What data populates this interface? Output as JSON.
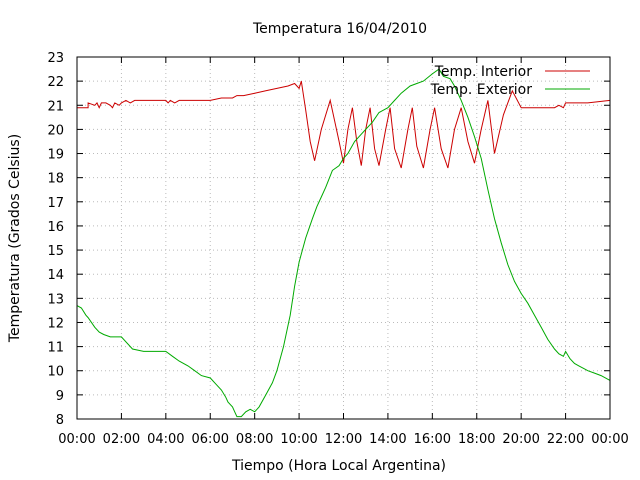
{
  "chart_data": {
    "type": "line",
    "title": "Temperatura 16/04/2010",
    "xlabel": "Tiempo (Hora Local Argentina)",
    "ylabel": "Temperatura (Grados Celsius)",
    "xlim": [
      0,
      24
    ],
    "ylim": [
      8,
      23
    ],
    "x_tick_labels": [
      "00:00",
      "02:00",
      "04:00",
      "06:00",
      "08:00",
      "10:00",
      "12:00",
      "14:00",
      "16:00",
      "18:00",
      "20:00",
      "22:00",
      "00:00"
    ],
    "y_tick_labels": [
      "8",
      "9",
      "10",
      "11",
      "12",
      "13",
      "14",
      "15",
      "16",
      "17",
      "18",
      "19",
      "20",
      "21",
      "22",
      "23"
    ],
    "grid": true,
    "legend_position": "top-right",
    "series": [
      {
        "name": "Temp. Interior",
        "color": "#cc0000",
        "x": [
          0,
          0.5,
          0.5,
          0.8,
          0.9,
          1.0,
          1.1,
          1.3,
          1.5,
          1.6,
          1.7,
          1.9,
          2.0,
          2.2,
          2.4,
          2.6,
          3.0,
          3.5,
          4.0,
          4.1,
          4.2,
          4.4,
          4.6,
          5.0,
          5.5,
          6.0,
          6.5,
          7.0,
          7.2,
          7.5,
          8.0,
          8.5,
          9.0,
          9.5,
          9.8,
          10.0,
          10.1,
          10.3,
          10.5,
          10.7,
          11.0,
          11.4,
          11.8,
          12.0,
          12.2,
          12.4,
          12.6,
          12.8,
          13.0,
          13.2,
          13.4,
          13.6,
          13.9,
          14.1,
          14.3,
          14.6,
          14.9,
          15.1,
          15.3,
          15.6,
          15.9,
          16.1,
          16.4,
          16.7,
          17.0,
          17.3,
          17.6,
          17.9,
          18.2,
          18.5,
          18.8,
          19.2,
          19.6,
          20.0,
          21.0,
          21.5,
          21.7,
          21.9,
          22.0,
          22.3,
          22.6,
          23.0,
          24.0
        ],
        "y": [
          20.9,
          20.9,
          21.1,
          21.0,
          21.1,
          20.9,
          21.1,
          21.1,
          21.0,
          20.9,
          21.1,
          21.0,
          21.1,
          21.2,
          21.1,
          21.2,
          21.2,
          21.2,
          21.2,
          21.1,
          21.2,
          21.1,
          21.2,
          21.2,
          21.2,
          21.2,
          21.3,
          21.3,
          21.4,
          21.4,
          21.5,
          21.6,
          21.7,
          21.8,
          21.9,
          21.7,
          22.0,
          20.8,
          19.5,
          18.7,
          20.0,
          21.2,
          19.5,
          18.6,
          20.0,
          20.9,
          19.5,
          18.5,
          20.0,
          20.9,
          19.2,
          18.5,
          20.0,
          20.9,
          19.2,
          18.4,
          20.0,
          20.9,
          19.3,
          18.4,
          20.0,
          20.9,
          19.2,
          18.4,
          20.0,
          20.9,
          19.5,
          18.6,
          20.0,
          21.2,
          19.0,
          20.6,
          21.6,
          20.9,
          20.9,
          20.9,
          21.0,
          20.9,
          21.1,
          21.1,
          21.1,
          21.1,
          21.2
        ]
      },
      {
        "name": "Temp. Exterior",
        "color": "#00aa00",
        "x": [
          0,
          0.2,
          0.4,
          0.5,
          0.8,
          1.0,
          1.2,
          1.5,
          2.0,
          2.5,
          3.0,
          3.5,
          4.0,
          4.3,
          4.6,
          5.0,
          5.3,
          5.6,
          6.0,
          6.2,
          6.5,
          6.7,
          6.8,
          7.0,
          7.1,
          7.2,
          7.4,
          7.6,
          7.8,
          8.0,
          8.2,
          8.5,
          8.8,
          9.0,
          9.3,
          9.6,
          9.8,
          10.0,
          10.3,
          10.6,
          10.8,
          11.0,
          11.2,
          11.5,
          11.8,
          12.0,
          12.2,
          12.5,
          12.8,
          13.0,
          13.3,
          13.6,
          14.0,
          14.3,
          14.6,
          15.0,
          15.3,
          15.6,
          16.0,
          16.3,
          16.5,
          16.8,
          17.0,
          17.3,
          17.6,
          17.9,
          18.2,
          18.5,
          18.8,
          19.1,
          19.4,
          19.7,
          20.0,
          20.3,
          20.6,
          20.9,
          21.2,
          21.5,
          21.7,
          21.9,
          22.0,
          22.2,
          22.4,
          22.6,
          22.8,
          23.0,
          23.3,
          23.6,
          24.0
        ],
        "y": [
          12.7,
          12.6,
          12.3,
          12.2,
          11.8,
          11.6,
          11.5,
          11.4,
          11.4,
          10.9,
          10.8,
          10.8,
          10.8,
          10.6,
          10.4,
          10.2,
          10.0,
          9.8,
          9.7,
          9.5,
          9.2,
          8.9,
          8.7,
          8.5,
          8.3,
          8.1,
          8.1,
          8.3,
          8.4,
          8.3,
          8.5,
          9.0,
          9.5,
          10.0,
          11.0,
          12.3,
          13.5,
          14.5,
          15.5,
          16.3,
          16.8,
          17.2,
          17.6,
          18.3,
          18.5,
          18.8,
          19.0,
          19.5,
          19.8,
          20.0,
          20.3,
          20.7,
          20.9,
          21.2,
          21.5,
          21.8,
          21.9,
          22.0,
          22.3,
          22.5,
          22.2,
          22.1,
          21.8,
          21.2,
          20.5,
          19.7,
          18.8,
          17.5,
          16.3,
          15.3,
          14.4,
          13.7,
          13.2,
          12.8,
          12.3,
          11.8,
          11.3,
          10.9,
          10.7,
          10.6,
          10.8,
          10.5,
          10.3,
          10.2,
          10.1,
          10.0,
          9.9,
          9.8,
          9.6
        ]
      }
    ]
  }
}
